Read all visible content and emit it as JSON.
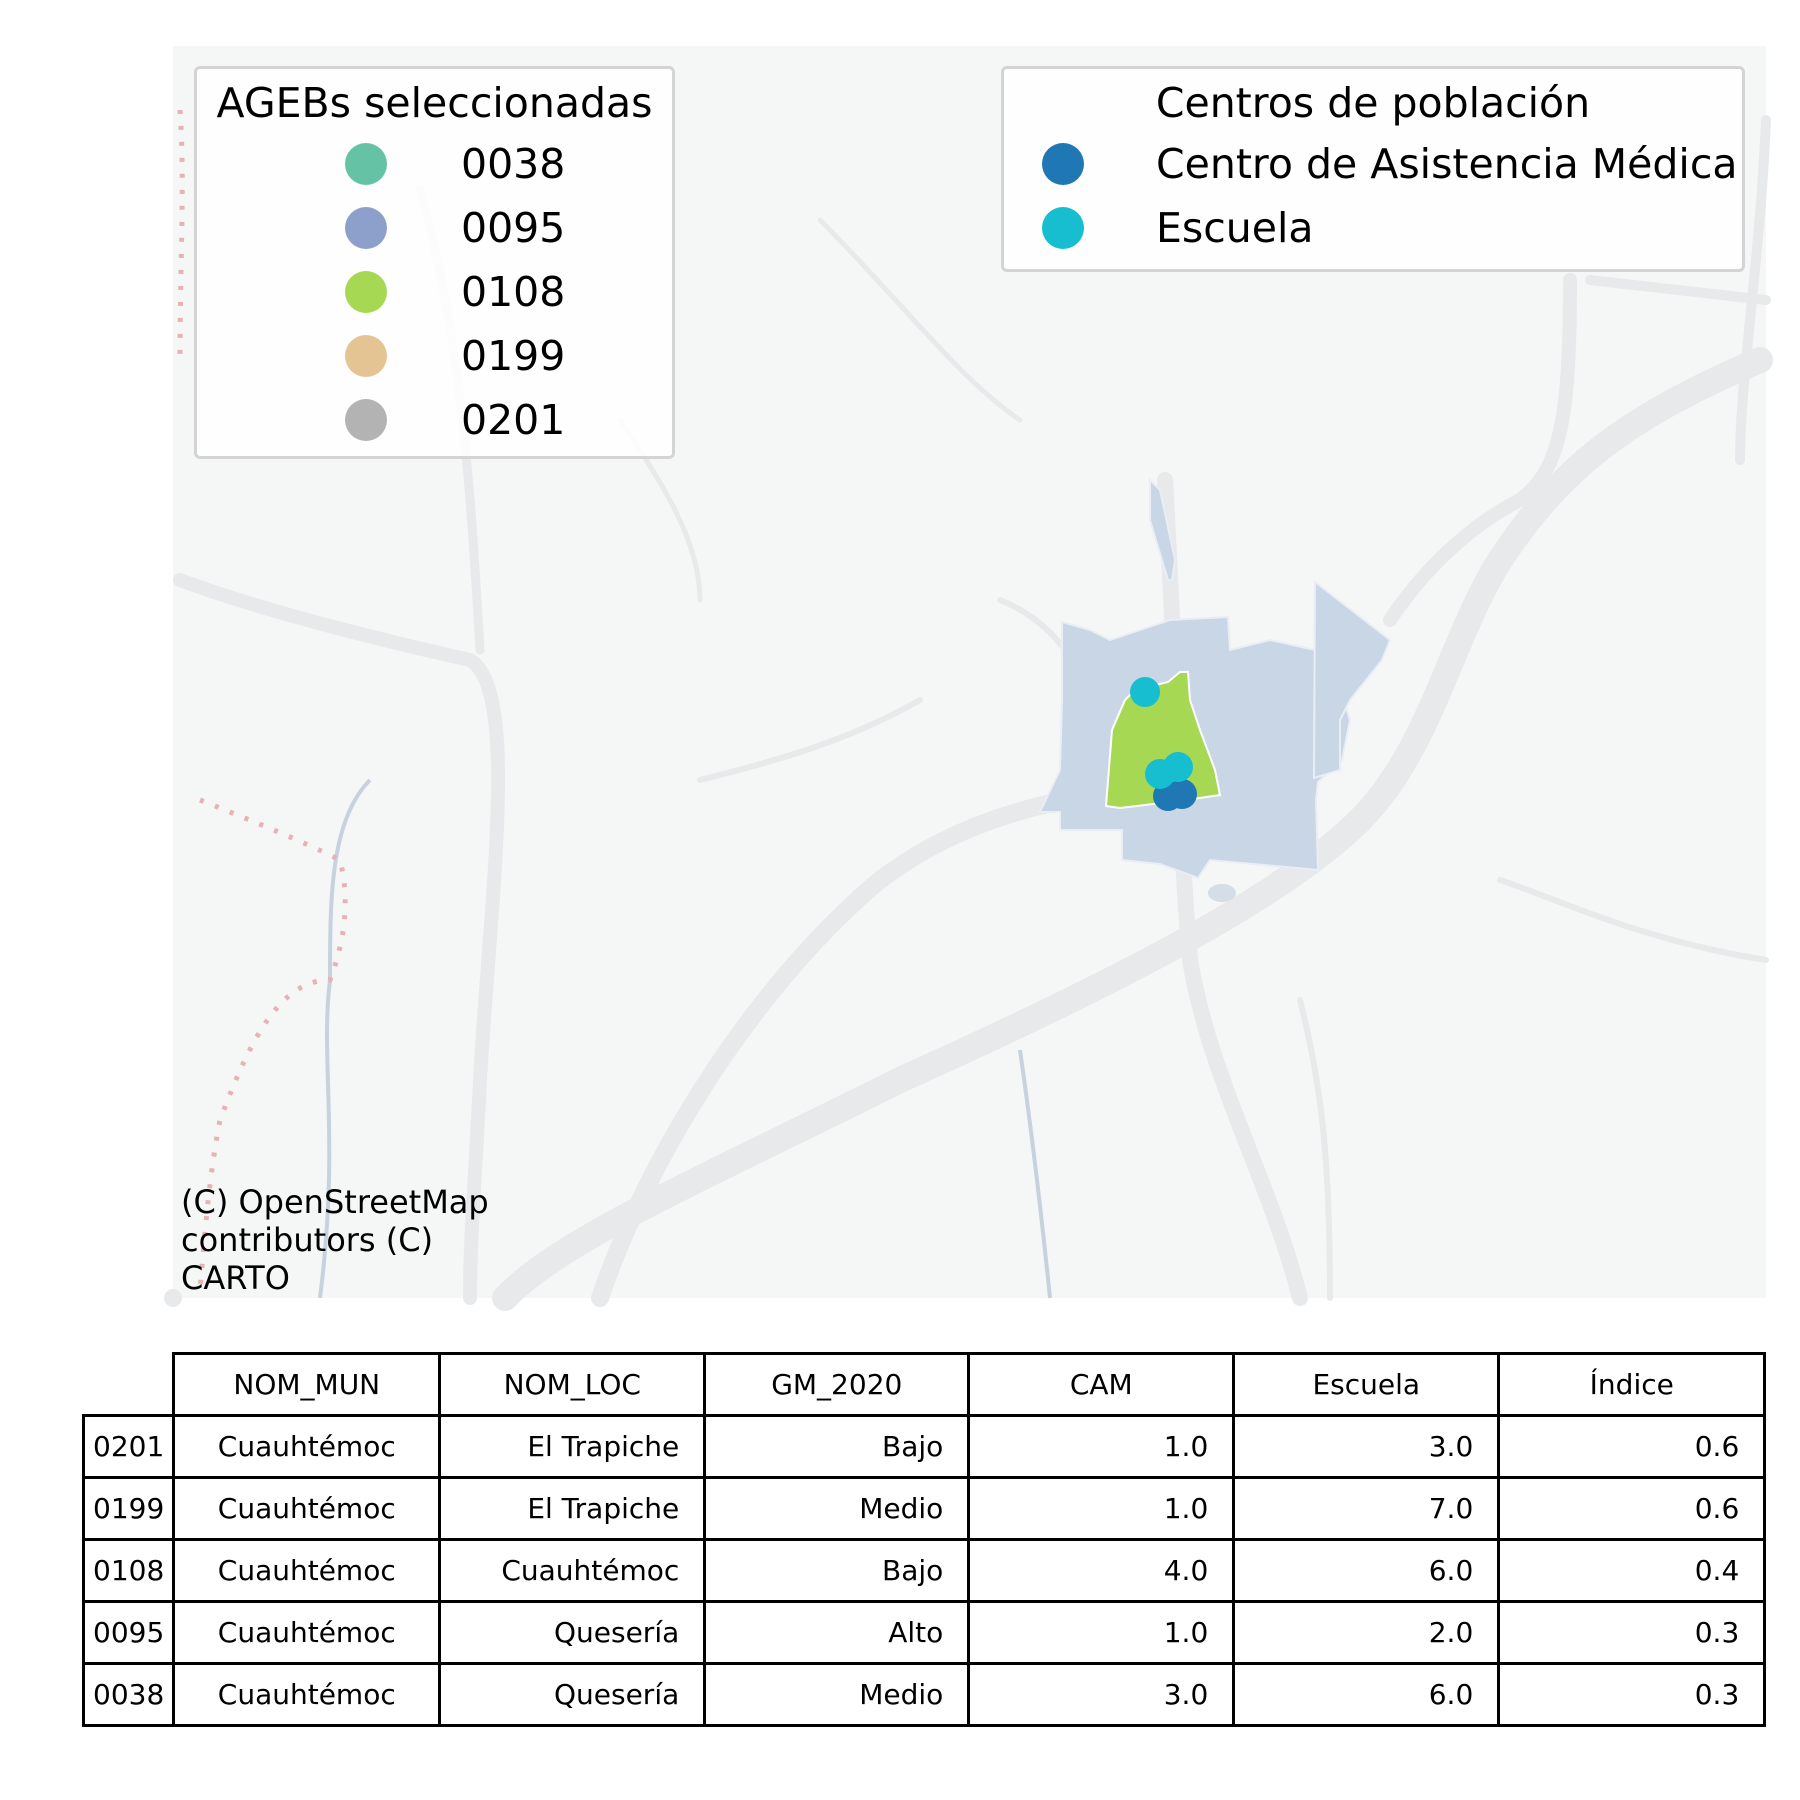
{
  "legend_agebs": {
    "title": "AGEBs seleccionadas",
    "items": [
      {
        "label": "0038",
        "color": "#66c2a5"
      },
      {
        "label": "0095",
        "color": "#8da0cb"
      },
      {
        "label": "0108",
        "color": "#a6d854"
      },
      {
        "label": "0199",
        "color": "#e5c494"
      },
      {
        "label": "0201",
        "color": "#b3b3b3"
      }
    ]
  },
  "legend_centros": {
    "title": "Centros de población",
    "items": [
      {
        "label": "Centro de Asistencia Médica",
        "color": "#1f77b4"
      },
      {
        "label": "Escuela",
        "color": "#17becf"
      }
    ]
  },
  "attribution": "(C) OpenStreetMap\ncontributors (C)\nCARTO",
  "map_colors": {
    "background": "#f5f6f6",
    "road": "#e8e9ea",
    "water": "#c7d2de",
    "boundary": "#e7b2b5",
    "ageb_other": "#c8d6e5",
    "ageb_selected": "#a6d854"
  },
  "table": {
    "headers": [
      "NOM_MUN",
      "NOM_LOC",
      "GM_2020",
      "CAM",
      "Escuela",
      "Índice"
    ],
    "rows": [
      {
        "id": "0201",
        "mun": "Cuauhtémoc",
        "loc": "El Trapiche",
        "gm": "Bajo",
        "cam": "1.0",
        "escuela": "3.0",
        "indice": "0.6"
      },
      {
        "id": "0199",
        "mun": "Cuauhtémoc",
        "loc": "El Trapiche",
        "gm": "Medio",
        "cam": "1.0",
        "escuela": "7.0",
        "indice": "0.6"
      },
      {
        "id": "0108",
        "mun": "Cuauhtémoc",
        "loc": "Cuauhtémoc",
        "gm": "Bajo",
        "cam": "4.0",
        "escuela": "6.0",
        "indice": "0.4"
      },
      {
        "id": "0095",
        "mun": "Cuauhtémoc",
        "loc": "Quesería",
        "gm": "Alto",
        "cam": "1.0",
        "escuela": "2.0",
        "indice": "0.3"
      },
      {
        "id": "0038",
        "mun": "Cuauhtémoc",
        "loc": "Quesería",
        "gm": "Medio",
        "cam": "3.0",
        "escuela": "6.0",
        "indice": "0.3"
      }
    ]
  }
}
